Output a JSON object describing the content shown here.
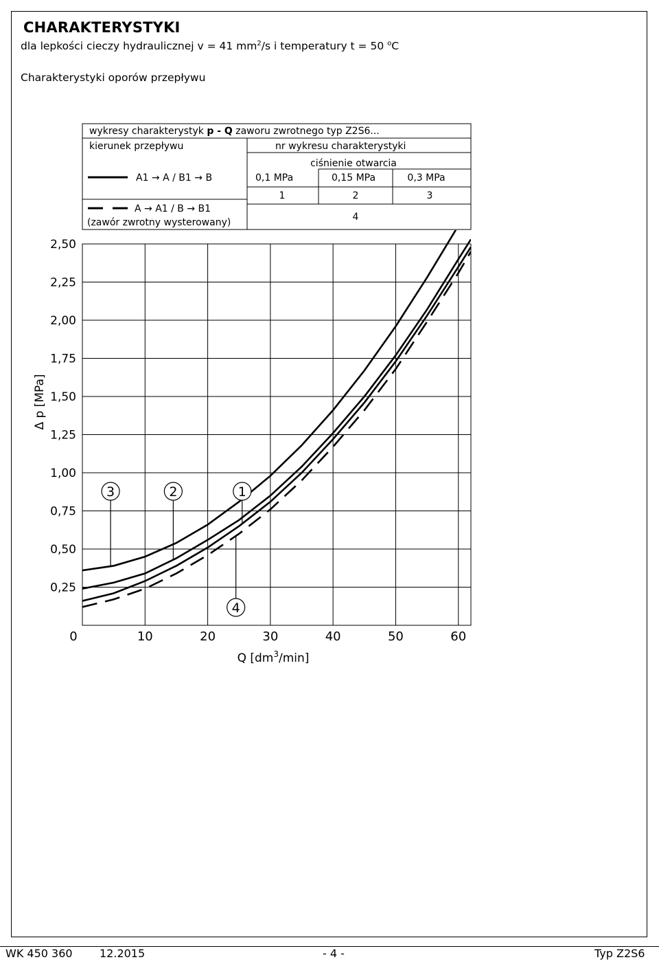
{
  "title": "CHARAKTERYSTYKI",
  "subtitle": {
    "pre": "dla lepkości cieczy hydraulicznej v = 41 mm",
    "sup": "2",
    "mid": "/s  i temperatury  t = 50 ",
    "deg": "o",
    "post": "C"
  },
  "section_title": "Charakterystyki oporów przepływu",
  "legend_table": {
    "header": "wykresy charakterystyk",
    "header_bold": "p - Q",
    "header_post": "zaworu zwrotnego typ Z2S6...",
    "col_direction": "kierunek przepływu",
    "col_curve_no": "nr wykresu charakterystyki",
    "cracking_pressure": "ciśnienie otwarcia",
    "pressures": [
      "0,1 MPa",
      "0,15 MPa",
      "0,3 MPa"
    ],
    "curve_numbers": [
      "1",
      "2",
      "3"
    ],
    "row1_direction": "A1 → A / B1 → B",
    "row2_direction": "A → A1 / B → B1",
    "row2_note": "(zawór zwrotny wysterowany)",
    "row2_curve": "4"
  },
  "chart_data": {
    "type": "line",
    "xlabel": "Q [dm³/min]",
    "xlabel_pre": "Q [dm",
    "xlabel_sup": "3",
    "xlabel_post": "/min]",
    "ylabel": "Δ p  [MPa]",
    "xlim": [
      0,
      62
    ],
    "ylim": [
      0,
      2.5
    ],
    "x_ticks": [
      "0",
      "10",
      "20",
      "30",
      "40",
      "50",
      "60"
    ],
    "y_ticks": [
      "2,50",
      "2,25",
      "2,00",
      "1,75",
      "1,50",
      "1,25",
      "1,00",
      "0,75",
      "0,50",
      "0,25"
    ],
    "grid": true,
    "series": [
      {
        "name": "1",
        "style": "solid",
        "x": [
          0,
          5,
          10,
          15,
          20,
          25,
          30,
          35,
          40,
          45,
          50,
          55,
          60,
          62
        ],
        "y": [
          0.16,
          0.21,
          0.29,
          0.39,
          0.51,
          0.65,
          0.81,
          1.0,
          1.22,
          1.46,
          1.73,
          2.03,
          2.35,
          2.48
        ]
      },
      {
        "name": "2",
        "style": "solid",
        "x": [
          0,
          5,
          10,
          15,
          20,
          25,
          30,
          35,
          40,
          45,
          50,
          55,
          60,
          62
        ],
        "y": [
          0.24,
          0.28,
          0.34,
          0.44,
          0.56,
          0.69,
          0.85,
          1.04,
          1.26,
          1.5,
          1.77,
          2.07,
          2.4,
          2.53
        ]
      },
      {
        "name": "3",
        "style": "solid",
        "x": [
          0,
          5,
          10,
          15,
          20,
          25,
          30,
          35,
          40,
          45,
          50,
          55,
          60,
          62
        ],
        "y": [
          0.36,
          0.39,
          0.45,
          0.54,
          0.66,
          0.81,
          0.98,
          1.18,
          1.41,
          1.67,
          1.96,
          2.28,
          2.62,
          2.76
        ]
      },
      {
        "name": "4",
        "style": "dashed",
        "x": [
          0,
          5,
          10,
          15,
          20,
          25,
          30,
          35,
          40,
          45,
          50,
          55,
          60,
          62
        ],
        "y": [
          0.12,
          0.17,
          0.24,
          0.34,
          0.46,
          0.6,
          0.76,
          0.95,
          1.17,
          1.41,
          1.68,
          1.99,
          2.31,
          2.45
        ]
      }
    ],
    "curve_labels": [
      "3",
      "2",
      "1",
      "4"
    ]
  },
  "footer": {
    "doc_no": "WK 450 360",
    "date": "12.2015",
    "page": "- 4 -",
    "type": "Typ Z2S6"
  }
}
